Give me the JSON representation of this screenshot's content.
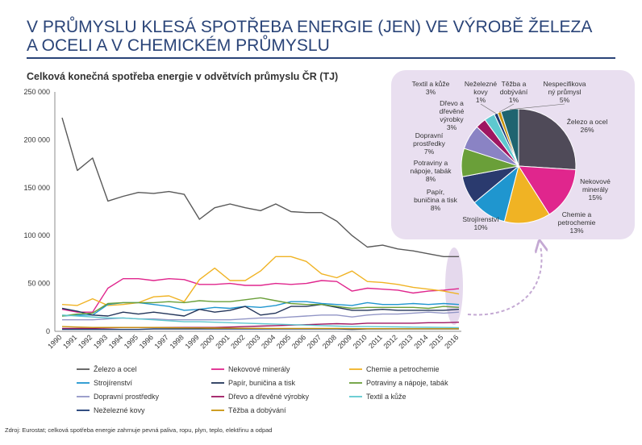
{
  "page": {
    "title_line1": "V PRŮMYSLU KLESÁ SPOTŘEBA ENERGIE (JEN) VE VÝROBĚ ŽELEZA",
    "title_line2": "A OCELI A V CHEMICKÉM PRŮMYSLU",
    "source": "Zdroj: Eurostat; celková spotřeba energie zahrnuje pevná paliva, ropu, plyn, teplo, elektřinu a odpad",
    "accent_color": "#2a4478"
  },
  "chart_data": [
    {
      "type": "line",
      "title": "Celková konečná spotřeba energie v odvětvích průmyslu ČR (TJ)",
      "ylim": [
        0,
        250000
      ],
      "yticks": [
        "0",
        "50 000",
        "100 000",
        "150 000",
        "200 000",
        "250 000"
      ],
      "ytick_values": [
        0,
        50000,
        100000,
        150000,
        200000,
        250000
      ],
      "x": [
        "1990",
        "1991",
        "1992",
        "1993",
        "1994",
        "1995",
        "1996",
        "1997",
        "1998",
        "1999",
        "2000",
        "2001",
        "2002",
        "2003",
        "2004",
        "2005",
        "2006",
        "2007",
        "2008",
        "2009",
        "2010",
        "2011",
        "2012",
        "2013",
        "2014",
        "2015",
        "2016"
      ],
      "legend_position": "bottom",
      "grid": false,
      "series": [
        {
          "name": "Železo a ocel",
          "color": "#595959",
          "values": [
            223000,
            168000,
            181000,
            136000,
            141000,
            145000,
            144000,
            146000,
            143000,
            117000,
            129000,
            133000,
            129000,
            126000,
            133000,
            125000,
            124000,
            124000,
            115000,
            100000,
            88000,
            90000,
            86000,
            84000,
            81000,
            78000,
            78000
          ]
        },
        {
          "name": "Nekovové minerály",
          "color": "#e0268d",
          "values": [
            23000,
            20000,
            20000,
            45000,
            55000,
            55000,
            53000,
            55000,
            54000,
            49000,
            49000,
            50000,
            48000,
            48000,
            50000,
            49000,
            50000,
            53000,
            52000,
            42000,
            45000,
            44000,
            43000,
            40000,
            42000,
            43000,
            44500
          ]
        },
        {
          "name": "Chemie a petrochemie",
          "color": "#f0b324",
          "values": [
            28000,
            27000,
            34000,
            27000,
            28000,
            30000,
            36000,
            37000,
            31000,
            54000,
            66000,
            53000,
            53000,
            63000,
            78000,
            78000,
            73000,
            60000,
            56000,
            63000,
            52000,
            51000,
            49000,
            46000,
            44000,
            42000,
            39000
          ]
        },
        {
          "name": "Strojírenství",
          "color": "#1f96cf",
          "values": [
            16000,
            17000,
            17000,
            28000,
            30000,
            30000,
            28000,
            26000,
            22000,
            23000,
            25000,
            24000,
            26000,
            25000,
            27000,
            31000,
            31000,
            29000,
            28000,
            27000,
            30000,
            28000,
            28000,
            29000,
            28000,
            29000,
            28000
          ]
        },
        {
          "name": "Papír, buničina a tisk",
          "color": "#23355a",
          "values": [
            24000,
            21000,
            17000,
            16000,
            20000,
            18000,
            20000,
            18000,
            16000,
            23000,
            20000,
            22000,
            26000,
            17000,
            19000,
            26000,
            26000,
            28000,
            25000,
            22000,
            22000,
            23000,
            22000,
            22000,
            22000,
            22000,
            23000
          ]
        },
        {
          "name": "Potraviny a nápoje, tabák",
          "color": "#6a9f39",
          "values": [
            16000,
            18000,
            19000,
            29000,
            30000,
            30000,
            30000,
            31000,
            30000,
            32000,
            31000,
            31000,
            33000,
            35000,
            32000,
            29000,
            28000,
            28000,
            26000,
            24000,
            25000,
            25000,
            25000,
            25000,
            24000,
            26000,
            25000
          ]
        },
        {
          "name": "Dopravní prostředky",
          "color": "#9296c6",
          "values": [
            12000,
            12000,
            12000,
            13000,
            14000,
            13000,
            13000,
            12000,
            12000,
            12000,
            12000,
            12000,
            13000,
            14000,
            14000,
            15000,
            16000,
            17000,
            17000,
            15000,
            17000,
            18000,
            18000,
            19000,
            20000,
            19000,
            20000
          ]
        },
        {
          "name": "Dřevo a dřevěné výrobky",
          "color": "#9e1661",
          "values": [
            3000,
            3000,
            3000,
            3500,
            4000,
            4000,
            4000,
            4000,
            4000,
            4000,
            4000,
            4500,
            5000,
            5500,
            6000,
            6500,
            7000,
            7500,
            8000,
            7500,
            8500,
            8500,
            8500,
            8500,
            9000,
            9000,
            9500
          ]
        },
        {
          "name": "Textil a kůže",
          "color": "#5ec8cf",
          "values": [
            17000,
            16000,
            15000,
            14000,
            14000,
            13000,
            12000,
            11000,
            10000,
            10000,
            9500,
            9000,
            8500,
            8000,
            7500,
            7000,
            6500,
            6000,
            5500,
            5000,
            5000,
            4800,
            4600,
            4400,
            4200,
            4000,
            3900
          ]
        },
        {
          "name": "Neželezné kovy",
          "color": "#1b3a73",
          "values": [
            2000,
            2000,
            2000,
            2000,
            2000,
            2000,
            2500,
            2500,
            2500,
            2500,
            2500,
            2500,
            2500,
            2500,
            2500,
            2500,
            2500,
            2500,
            2500,
            2000,
            2500,
            2500,
            2500,
            2500,
            2500,
            2500,
            2500
          ]
        },
        {
          "name": "Těžba a dobývání",
          "color": "#c8930c",
          "values": [
            5000,
            4500,
            4000,
            4000,
            4000,
            4000,
            4000,
            3800,
            3600,
            3500,
            3400,
            3300,
            3200,
            3100,
            3000,
            3000,
            3000,
            3000,
            3000,
            2800,
            2800,
            2800,
            2700,
            2700,
            2700,
            2700,
            2700
          ]
        }
      ]
    },
    {
      "type": "pie",
      "slices": [
        {
          "label": "Železo a ocel",
          "value": 26,
          "display": "26%",
          "color": "#4f4a58"
        },
        {
          "label": "Nekovové minerály",
          "value": 15,
          "display": "15%",
          "color": "#e0268d"
        },
        {
          "label": "Chemie a petrochemie",
          "value": 13,
          "display": "13%",
          "color": "#f0b324"
        },
        {
          "label": "Strojírenství",
          "value": 10,
          "display": "10%",
          "color": "#1f96cf"
        },
        {
          "label": "Papír, buničina a tisk",
          "value": 8,
          "display": "8%",
          "color": "#2a3a6e"
        },
        {
          "label": "Potraviny a nápoje, tabák",
          "value": 8,
          "display": "8%",
          "color": "#6a9f39"
        },
        {
          "label": "Dopravní prostředky",
          "value": 7,
          "display": "7%",
          "color": "#8a83c4"
        },
        {
          "label": "Dřevo a dřevěné výrobky",
          "value": 3,
          "display": "3%",
          "color": "#9e1661"
        },
        {
          "label": "Textil a kůže",
          "value": 3,
          "display": "3%",
          "color": "#5ec8cf"
        },
        {
          "label": "Neželezné kovy",
          "value": 1,
          "display": "1%",
          "color": "#1b3a73"
        },
        {
          "label": "Těžba a dobývání",
          "value": 1,
          "display": "1%",
          "color": "#c8930c"
        },
        {
          "label": "Nespecifikovaný průmysl",
          "value": 5,
          "display": "5%",
          "color": "#1f6470"
        }
      ]
    }
  ]
}
